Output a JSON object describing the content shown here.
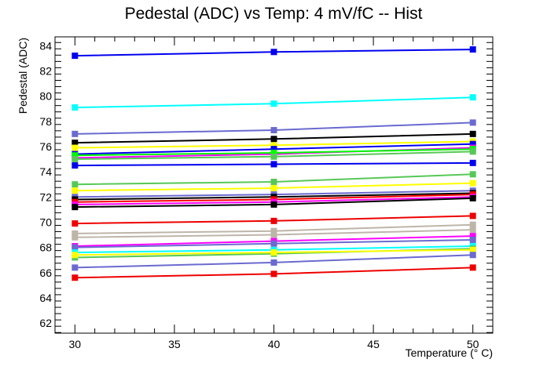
{
  "chart_data": {
    "type": "line",
    "title": "Pedestal (ADC) vs Temp: 4 mV/fC -- Hist",
    "xlabel": "Temperature (° C)",
    "ylabel": "Pedestal (ADC)",
    "xlim": [
      29,
      51
    ],
    "ylim": [
      61.2,
      84.7
    ],
    "xticks": [
      30,
      35,
      40,
      45,
      50
    ],
    "yticks": [
      62,
      64,
      66,
      68,
      70,
      72,
      74,
      76,
      78,
      80,
      82,
      84
    ],
    "grid": false,
    "legend": "none",
    "x": [
      30,
      40,
      50
    ],
    "series": [
      {
        "color": "#0000ee",
        "values": [
          83.2,
          83.5,
          83.7
        ]
      },
      {
        "color": "#00ffff",
        "values": [
          79.1,
          79.4,
          79.9
        ]
      },
      {
        "color": "#6a6ad0",
        "values": [
          77.0,
          77.3,
          77.9
        ]
      },
      {
        "color": "#000000",
        "values": [
          76.3,
          76.6,
          77.0
        ]
      },
      {
        "color": "#ffff00",
        "values": [
          75.9,
          76.1,
          76.4
        ]
      },
      {
        "color": "#0000ee",
        "values": [
          75.4,
          75.8,
          76.2
        ]
      },
      {
        "color": "#ff00ff",
        "values": [
          75.1,
          75.4,
          75.9
        ]
      },
      {
        "color": "#00ff00",
        "values": [
          75.3,
          75.5,
          75.8
        ]
      },
      {
        "color": "#57c857",
        "values": [
          75.0,
          75.2,
          75.6
        ]
      },
      {
        "color": "#0000ee",
        "values": [
          74.5,
          74.6,
          74.7
        ]
      },
      {
        "color": "#57c857",
        "values": [
          73.0,
          73.2,
          73.8
        ]
      },
      {
        "color": "#ffff00",
        "values": [
          72.5,
          72.7,
          73.1
        ]
      },
      {
        "color": "#6a6ad0",
        "values": [
          72.0,
          72.2,
          72.5
        ]
      },
      {
        "color": "#000000",
        "values": [
          71.8,
          72.0,
          72.3
        ]
      },
      {
        "color": "#ff0000",
        "values": [
          71.6,
          71.8,
          72.2
        ]
      },
      {
        "color": "#ff00ff",
        "values": [
          71.4,
          71.6,
          72.0
        ]
      },
      {
        "color": "#000000",
        "values": [
          71.2,
          71.4,
          71.9
        ]
      },
      {
        "color": "#ee0000",
        "values": [
          69.9,
          70.1,
          70.5
        ]
      },
      {
        "color": "#bdb5a8",
        "values": [
          69.1,
          69.3,
          69.8
        ]
      },
      {
        "color": "#bdb5a8",
        "values": [
          68.8,
          69.0,
          69.4
        ]
      },
      {
        "color": "#ff00ff",
        "values": [
          68.1,
          68.5,
          68.9
        ]
      },
      {
        "color": "#6a6ad0",
        "values": [
          68.0,
          68.3,
          68.6
        ]
      },
      {
        "color": "#00ffff",
        "values": [
          67.6,
          67.8,
          68.1
        ]
      },
      {
        "color": "#57c857",
        "values": [
          67.2,
          67.5,
          67.9
        ]
      },
      {
        "color": "#ffff00",
        "values": [
          67.4,
          67.6,
          67.8
        ]
      },
      {
        "color": "#6a6ad0",
        "values": [
          66.4,
          66.8,
          67.4
        ]
      },
      {
        "color": "#ee0000",
        "values": [
          65.6,
          65.9,
          66.4
        ]
      }
    ]
  }
}
